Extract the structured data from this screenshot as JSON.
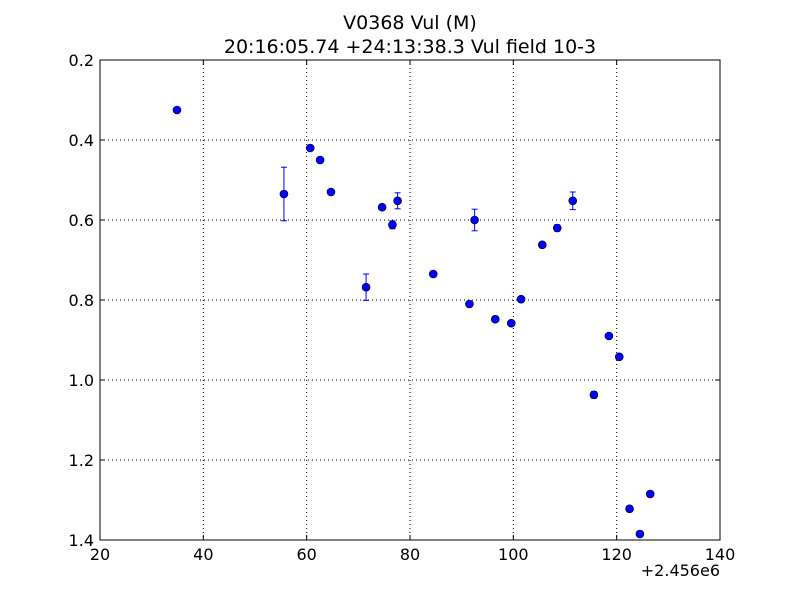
{
  "chart_data": {
    "type": "scatter",
    "title": "V0368 Vul (M)",
    "subtitle": "20:16:05.74 +24:13:38.3 Vul field 10-3",
    "xlabel": "",
    "ylabel": "",
    "x_offset_label": "+2.456e6",
    "xlim": [
      20,
      140
    ],
    "ylim": [
      1.4,
      0.2
    ],
    "y_inverted": true,
    "grid": true,
    "marker_color": "#0000ff",
    "errorbar_color": "#0000ff",
    "x_ticks": [
      "20",
      "40",
      "60",
      "80",
      "100",
      "120",
      "140"
    ],
    "y_ticks": [
      "0.2",
      "0.4",
      "0.6",
      "0.8",
      "1.0",
      "1.2",
      "1.4"
    ],
    "points": [
      {
        "x": 34.9,
        "y": 0.325,
        "err": 0.0
      },
      {
        "x": 55.6,
        "y": 0.535,
        "err": 0.067
      },
      {
        "x": 60.7,
        "y": 0.42,
        "err": 0.005
      },
      {
        "x": 62.6,
        "y": 0.45,
        "err": 0.005
      },
      {
        "x": 64.7,
        "y": 0.53,
        "err": 0.005
      },
      {
        "x": 71.5,
        "y": 0.768,
        "err": 0.033
      },
      {
        "x": 74.6,
        "y": 0.568,
        "err": 0.005
      },
      {
        "x": 76.6,
        "y": 0.612,
        "err": 0.01
      },
      {
        "x": 77.6,
        "y": 0.552,
        "err": 0.02
      },
      {
        "x": 84.5,
        "y": 0.735,
        "err": 0.007
      },
      {
        "x": 91.5,
        "y": 0.81,
        "err": 0.005
      },
      {
        "x": 92.5,
        "y": 0.6,
        "err": 0.027
      },
      {
        "x": 96.5,
        "y": 0.848,
        "err": 0.005
      },
      {
        "x": 99.6,
        "y": 0.858,
        "err": 0.005
      },
      {
        "x": 101.5,
        "y": 0.798,
        "err": 0.005
      },
      {
        "x": 105.6,
        "y": 0.662,
        "err": 0.005
      },
      {
        "x": 108.5,
        "y": 0.62,
        "err": 0.008
      },
      {
        "x": 111.5,
        "y": 0.552,
        "err": 0.022
      },
      {
        "x": 115.6,
        "y": 1.037,
        "err": 0.008
      },
      {
        "x": 118.5,
        "y": 0.89,
        "err": 0.005
      },
      {
        "x": 120.5,
        "y": 0.942,
        "err": 0.005
      },
      {
        "x": 122.5,
        "y": 1.322,
        "err": 0.007
      },
      {
        "x": 124.5,
        "y": 1.385,
        "err": 0.007
      },
      {
        "x": 126.5,
        "y": 1.285,
        "err": 0.007
      }
    ]
  }
}
